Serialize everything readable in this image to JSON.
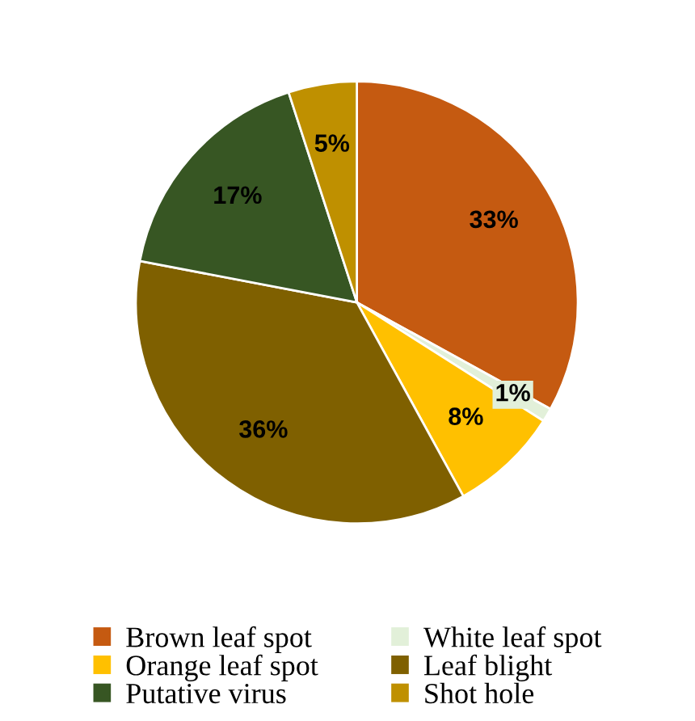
{
  "chart_data": {
    "type": "pie",
    "categories": [
      "Brown leaf spot",
      "White leaf spot",
      "Orange leaf spot",
      "Leaf blight",
      "Putative virus",
      "Shot hole"
    ],
    "values": [
      33,
      1,
      8,
      36,
      17,
      5
    ],
    "colors": [
      "#c55a11",
      "#e2f0d9",
      "#ffc000",
      "#7f6000",
      "#375623",
      "#bf9000"
    ],
    "value_labels": [
      "33%",
      "1%",
      "8%",
      "36%",
      "17%",
      "5%"
    ],
    "legend": "bottom"
  }
}
